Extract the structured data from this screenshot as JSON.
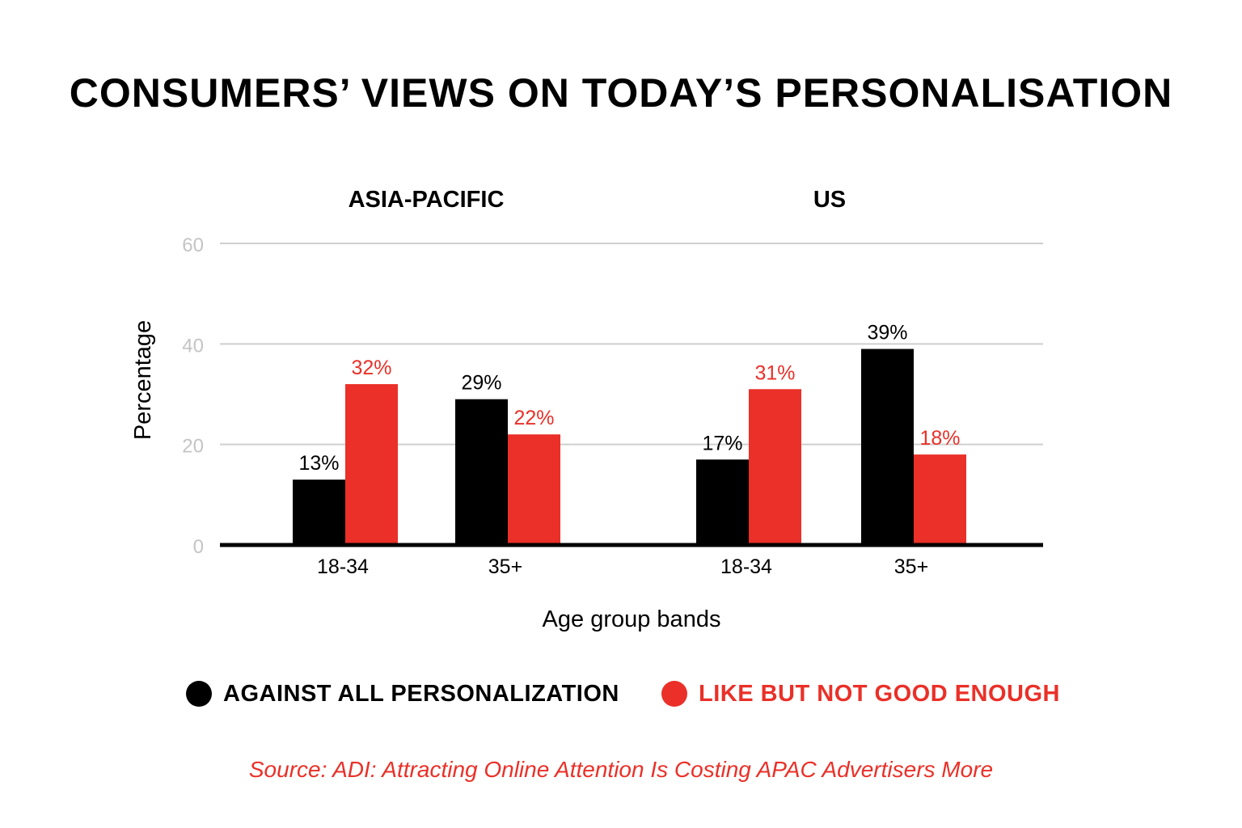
{
  "title": "CONSUMERS’ VIEWS ON TODAY’S PERSONALISATION",
  "source": "Source: ADI: Attracting Online Attention Is Costing APAC Advertisers More",
  "colors": {
    "black": "#000000",
    "red": "#ea3028",
    "grid": "#cfcfcf",
    "tick": "#c4c4c4"
  },
  "chart_data": {
    "type": "bar",
    "title": "CONSUMERS’ VIEWS ON TODAY’S PERSONALISATION",
    "xlabel": "Age group bands",
    "ylabel": "Percentage",
    "ylim": [
      0,
      60
    ],
    "yticks": [
      0,
      20,
      40,
      60
    ],
    "grid": true,
    "legend_position": "bottom",
    "groups": [
      {
        "name": "ASIA-PACIFIC",
        "categories": [
          "18-34",
          "35+"
        ]
      },
      {
        "name": "US",
        "categories": [
          "18-34",
          "35+"
        ]
      }
    ],
    "series": [
      {
        "name": "AGAINST ALL PERSONALIZATION",
        "color": "#000000",
        "values": [
          13,
          29,
          17,
          39
        ],
        "labels": [
          "13%",
          "29%",
          "17%",
          "39%"
        ]
      },
      {
        "name": "LIKE BUT NOT GOOD ENOUGH",
        "color": "#ea3028",
        "values": [
          32,
          22,
          31,
          18
        ],
        "labels": [
          "32%",
          "22%",
          "31%",
          "18%"
        ]
      }
    ]
  }
}
